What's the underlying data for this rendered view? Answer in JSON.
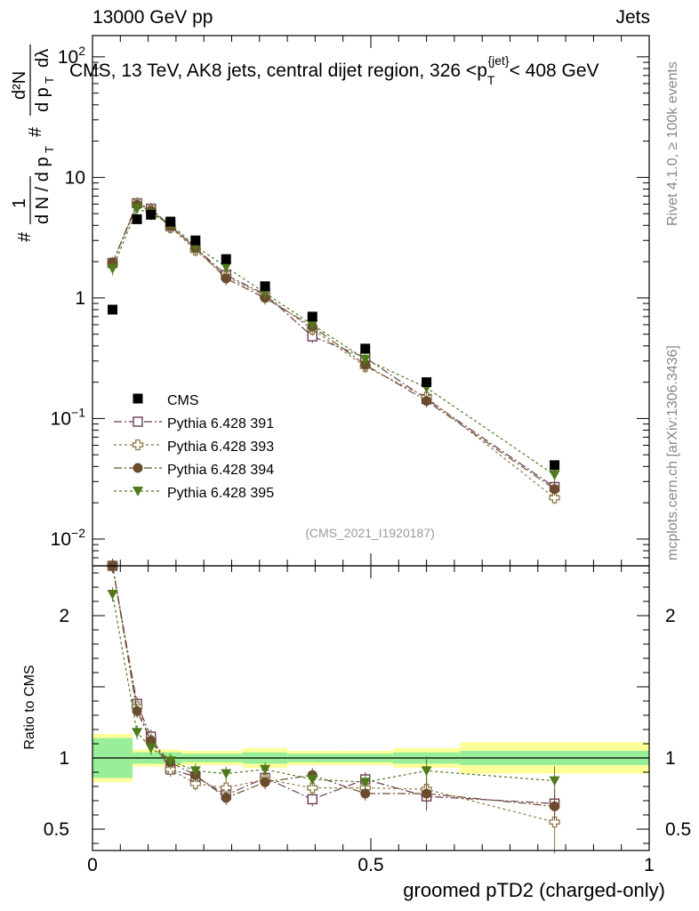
{
  "header": {
    "left": "13000 GeV pp",
    "right": "Jets"
  },
  "side_labels": {
    "rivet": "Rivet 4.1.0, ≥ 100k events",
    "mcplots": "mcplots.cern.ch [arXiv:1306.3436]"
  },
  "chart_data": {
    "type": "scatter",
    "title": "CMS, 13 TeV, AK8 jets, central dijet region, 326 <p",
    "title_sub": "T",
    "title_sup": "{jet}",
    "title_suffix": "< 408 GeV",
    "watermark": "(CMS_2021_I1920187)",
    "xlabel": "groomed pTD2 (charged-only)",
    "ylabel_main": "# 1/(dN / d p_T) # d²N/(d p_T dλ)",
    "ylabel_ratio": "Ratio to CMS",
    "xlim": [
      0,
      1
    ],
    "ylim_main": [
      0.006,
      150
    ],
    "ylim_ratio": [
      0.35,
      2.35
    ],
    "x_ticks": [
      {
        "value": 0,
        "label": "0"
      },
      {
        "value": 0.5,
        "label": "0.5"
      },
      {
        "value": 1,
        "label": "1"
      }
    ],
    "y_ticks_main": [
      {
        "value": 0.01,
        "base": "10",
        "exp": "−2"
      },
      {
        "value": 0.1,
        "base": "10",
        "exp": "−1"
      },
      {
        "value": 1,
        "base": "1",
        "exp": ""
      },
      {
        "value": 10,
        "base": "10",
        "exp": ""
      },
      {
        "value": 100,
        "base": "10",
        "exp": "2"
      }
    ],
    "y_ticks_ratio": [
      {
        "value": 0.5,
        "label": "0.5"
      },
      {
        "value": 1,
        "label": "1"
      },
      {
        "value": 2,
        "label": "2"
      }
    ],
    "x": [
      0.036,
      0.08,
      0.105,
      0.14,
      0.185,
      0.24,
      0.31,
      0.395,
      0.49,
      0.6,
      0.83
    ],
    "bins": [
      0,
      0.072,
      0.09,
      0.12,
      0.16,
      0.21,
      0.27,
      0.35,
      0.44,
      0.54,
      0.66,
      1.0
    ],
    "cms": {
      "name": "CMS",
      "values": [
        0.8,
        4.5,
        4.9,
        4.3,
        3.0,
        2.1,
        1.25,
        0.7,
        0.38,
        0.2,
        0.041
      ],
      "band_inner": [
        0.14,
        0.04,
        0.04,
        0.04,
        0.03,
        0.03,
        0.04,
        0.03,
        0.03,
        0.04,
        0.05
      ],
      "band_outer": [
        0.17,
        0.06,
        0.06,
        0.06,
        0.05,
        0.05,
        0.07,
        0.05,
        0.05,
        0.07,
        0.11
      ]
    },
    "series": [
      {
        "name": "Pythia 6.428 391",
        "marker": "open-square",
        "color": "#6b3a55",
        "dash": "9,3,2,3",
        "values": [
          1.95,
          6.1,
          5.5,
          3.95,
          2.6,
          1.55,
          1.07,
          0.48,
          0.32,
          0.145,
          0.027
        ],
        "ratio": [
          2.43,
          1.38,
          1.15,
          0.92,
          0.87,
          0.74,
          0.86,
          0.71,
          0.85,
          0.73,
          0.68
        ]
      },
      {
        "name": "Pythia 6.428 393",
        "marker": "open-cross",
        "color": "#8e7a4a",
        "dash": "3,3",
        "values": [
          1.95,
          6.0,
          5.4,
          3.85,
          2.5,
          1.5,
          1.05,
          0.55,
          0.27,
          0.15,
          0.022
        ],
        "ratio": [
          2.43,
          1.36,
          1.12,
          0.92,
          0.82,
          0.79,
          0.85,
          0.79,
          0.79,
          0.78,
          0.55
        ]
      },
      {
        "name": "Pythia 6.428 394",
        "marker": "filled-circle",
        "color": "#6b4d2e",
        "dash": "9,3,2,3",
        "values": [
          1.95,
          5.9,
          5.3,
          3.95,
          2.6,
          1.45,
          1.0,
          0.58,
          0.28,
          0.14,
          0.026
        ],
        "ratio": [
          2.43,
          1.33,
          1.12,
          0.97,
          0.88,
          0.72,
          0.83,
          0.88,
          0.75,
          0.75,
          0.66
        ]
      },
      {
        "name": "Pythia 6.428 395",
        "marker": "filled-triangle-down",
        "color": "#4f7a1c",
        "dash": "3,3",
        "values": [
          1.75,
          5.5,
          5.0,
          4.1,
          2.7,
          1.8,
          1.1,
          0.6,
          0.31,
          0.18,
          0.034
        ],
        "ratio": [
          2.15,
          1.18,
          1.07,
          0.98,
          0.91,
          0.89,
          0.92,
          0.85,
          0.83,
          0.91,
          0.84
        ]
      }
    ],
    "legend_position": "lower-left"
  }
}
